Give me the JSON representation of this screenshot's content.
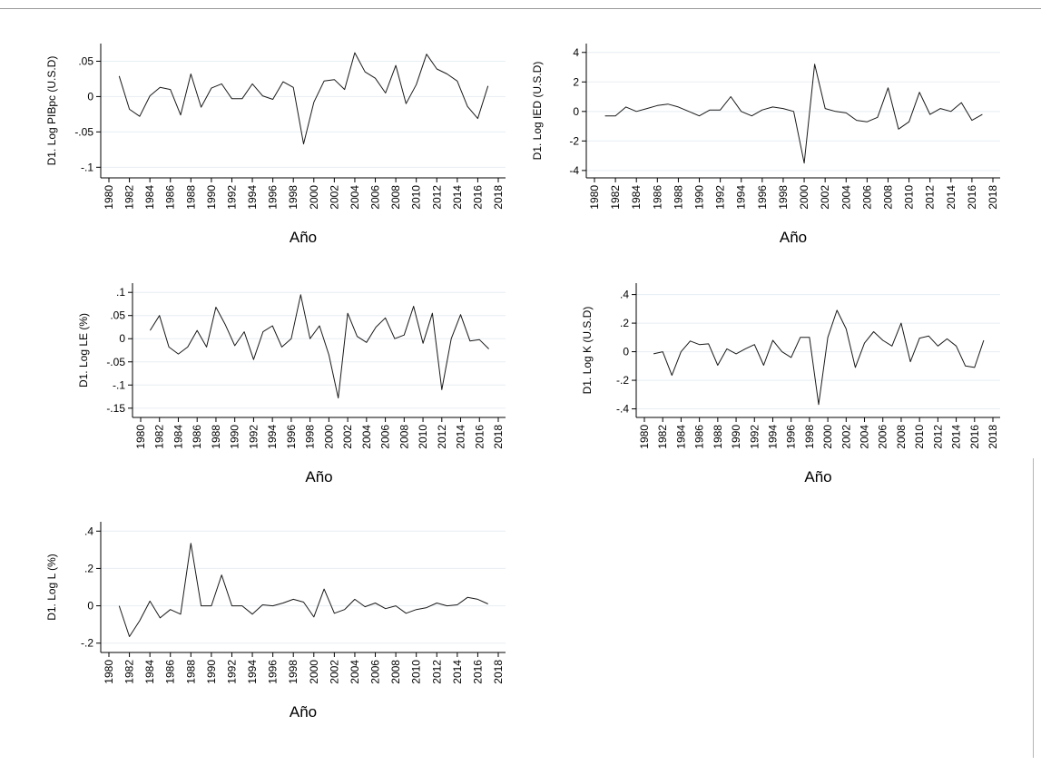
{
  "chart_data": [
    {
      "type": "line",
      "ylabel": "D1. Log PIBpc (U.S.D)",
      "xlabel": "Año",
      "xlim": [
        1980,
        2018
      ],
      "xticks": [
        "1980",
        "1982",
        "1984",
        "1986",
        "1988",
        "1990",
        "1992",
        "1994",
        "1996",
        "1998",
        "2000",
        "2002",
        "2004",
        "2006",
        "2008",
        "2010",
        "2012",
        "2014",
        "2016",
        "2018"
      ],
      "ylim": [
        -0.115,
        0.075
      ],
      "yticks": [
        0.05,
        0,
        -0.05,
        -0.1
      ],
      "ytick_labels": [
        ".05",
        "0",
        "-.05",
        "-.1"
      ],
      "grid": true,
      "x": [
        1981,
        1982,
        1983,
        1984,
        1985,
        1986,
        1987,
        1988,
        1989,
        1990,
        1991,
        1992,
        1993,
        1994,
        1995,
        1996,
        1997,
        1998,
        1999,
        2000,
        2001,
        2002,
        2003,
        2004,
        2005,
        2006,
        2007,
        2008,
        2009,
        2010,
        2011,
        2012,
        2013,
        2014,
        2015,
        2016,
        2017
      ],
      "y": [
        0.029,
        -0.018,
        -0.028,
        0.001,
        0.013,
        0.01,
        -0.026,
        0.032,
        -0.015,
        0.012,
        0.018,
        -0.003,
        -0.003,
        0.018,
        0.001,
        -0.004,
        0.021,
        0.013,
        -0.067,
        -0.008,
        0.022,
        0.024,
        0.01,
        0.062,
        0.035,
        0.026,
        0.005,
        0.044,
        -0.01,
        0.017,
        0.06,
        0.039,
        0.032,
        0.022,
        -0.014,
        -0.031,
        0.015
      ]
    },
    {
      "type": "line",
      "ylabel": "D1. Log IED (U.S.D)",
      "xlabel": "Año",
      "xlim": [
        1980,
        2018
      ],
      "xticks": [
        "1980",
        "1982",
        "1984",
        "1986",
        "1988",
        "1990",
        "1992",
        "1994",
        "1996",
        "1998",
        "2000",
        "2002",
        "2004",
        "2006",
        "2008",
        "2010",
        "2012",
        "2014",
        "2016",
        "2018"
      ],
      "ylim": [
        -4.5,
        4.6
      ],
      "yticks": [
        4,
        2,
        0,
        -2,
        -4
      ],
      "ytick_labels": [
        "4",
        "2",
        "0",
        "-2",
        "-4"
      ],
      "grid": true,
      "x": [
        1981,
        1982,
        1983,
        1984,
        1985,
        1986,
        1987,
        1988,
        1989,
        1990,
        1991,
        1992,
        1993,
        1994,
        1995,
        1996,
        1997,
        1998,
        1999,
        2000,
        2001,
        2002,
        2003,
        2004,
        2005,
        2006,
        2007,
        2008,
        2009,
        2010,
        2011,
        2012,
        2013,
        2014,
        2015,
        2016,
        2017
      ],
      "y": [
        -0.3,
        -0.3,
        0.3,
        0.0,
        0.2,
        0.4,
        0.5,
        0.3,
        0.0,
        -0.3,
        0.1,
        0.1,
        1.0,
        0.0,
        -0.3,
        0.1,
        0.3,
        0.2,
        0.0,
        -3.5,
        3.2,
        0.2,
        0.0,
        -0.1,
        -0.6,
        -0.7,
        -0.4,
        1.6,
        -1.2,
        -0.7,
        1.3,
        -0.2,
        0.2,
        0.0,
        0.6,
        -0.6,
        -0.2
      ]
    },
    {
      "type": "line",
      "ylabel": "D1. Log LE (%)",
      "xlabel": "Año",
      "xlim": [
        1980,
        2018
      ],
      "xticks": [
        "1980",
        "1982",
        "1984",
        "1986",
        "1988",
        "1990",
        "1992",
        "1994",
        "1996",
        "1998",
        "2000",
        "2002",
        "2004",
        "2006",
        "2008",
        "2010",
        "2012",
        "2014",
        "2016",
        "2018"
      ],
      "ylim": [
        -0.17,
        0.12
      ],
      "yticks": [
        0.1,
        0.05,
        0,
        -0.05,
        -0.1,
        -0.15
      ],
      "ytick_labels": [
        ".1",
        ".05",
        "0",
        "-.05",
        "-.1",
        "-.15"
      ],
      "grid": true,
      "x": [
        1981,
        1982,
        1983,
        1984,
        1985,
        1986,
        1987,
        1988,
        1989,
        1990,
        1991,
        1992,
        1993,
        1994,
        1995,
        1996,
        1997,
        1998,
        1999,
        2000,
        2001,
        2002,
        2003,
        2004,
        2005,
        2006,
        2007,
        2008,
        2009,
        2010,
        2011,
        2012,
        2013,
        2014,
        2015,
        2016,
        2017
      ],
      "y": [
        0.018,
        0.05,
        -0.018,
        -0.033,
        -0.018,
        0.018,
        -0.018,
        0.068,
        0.03,
        -0.015,
        0.015,
        -0.045,
        0.015,
        0.028,
        -0.018,
        0.0,
        0.095,
        0.0,
        0.028,
        -0.035,
        -0.128,
        0.055,
        0.005,
        -0.008,
        0.025,
        0.045,
        0.0,
        0.008,
        0.07,
        -0.01,
        0.055,
        -0.11,
        0.0,
        0.052,
        -0.005,
        -0.002,
        -0.022
      ]
    },
    {
      "type": "line",
      "ylabel": "D1. Log K (U.S.D)",
      "xlabel": "Año",
      "xlim": [
        1980,
        2018
      ],
      "xticks": [
        "1980",
        "1982",
        "1984",
        "1986",
        "1988",
        "1990",
        "1992",
        "1994",
        "1996",
        "1998",
        "2000",
        "2002",
        "2004",
        "2006",
        "2008",
        "2010",
        "2012",
        "2014",
        "2016",
        "2018"
      ],
      "ylim": [
        -0.46,
        0.48
      ],
      "yticks": [
        0.4,
        0.2,
        0,
        -0.2,
        -0.4
      ],
      "ytick_labels": [
        ".4",
        ".2",
        "0",
        "-.2",
        "-.4"
      ],
      "grid": true,
      "x": [
        1981,
        1982,
        1983,
        1984,
        1985,
        1986,
        1987,
        1988,
        1989,
        1990,
        1991,
        1992,
        1993,
        1994,
        1995,
        1996,
        1997,
        1998,
        1999,
        2000,
        2001,
        2002,
        2003,
        2004,
        2005,
        2006,
        2007,
        2008,
        2009,
        2010,
        2011,
        2012,
        2013,
        2014,
        2015,
        2016,
        2017
      ],
      "y": [
        -0.015,
        0.0,
        -0.165,
        0.0,
        0.075,
        0.05,
        0.055,
        -0.095,
        0.02,
        -0.015,
        0.02,
        0.05,
        -0.095,
        0.08,
        0.0,
        -0.04,
        0.1,
        0.1,
        -0.37,
        0.1,
        0.29,
        0.16,
        -0.11,
        0.06,
        0.14,
        0.08,
        0.04,
        0.2,
        -0.07,
        0.095,
        0.11,
        0.04,
        0.09,
        0.04,
        -0.1,
        -0.11,
        0.08
      ]
    },
    {
      "type": "line",
      "ylabel": "D1. Log L (%)",
      "xlabel": "Año",
      "xlim": [
        1980,
        2018
      ],
      "xticks": [
        "1980",
        "1982",
        "1984",
        "1986",
        "1988",
        "1990",
        "1992",
        "1994",
        "1996",
        "1998",
        "2000",
        "2002",
        "2004",
        "2006",
        "2008",
        "2010",
        "2012",
        "2014",
        "2016",
        "2018"
      ],
      "ylim": [
        -0.25,
        0.45
      ],
      "yticks": [
        0.4,
        0.2,
        0,
        -0.2
      ],
      "ytick_labels": [
        ".4",
        ".2",
        "0",
        "-.2"
      ],
      "grid": true,
      "x": [
        1981,
        1982,
        1983,
        1984,
        1985,
        1986,
        1987,
        1988,
        1989,
        1990,
        1991,
        1992,
        1993,
        1994,
        1995,
        1996,
        1997,
        1998,
        1999,
        2000,
        2001,
        2002,
        2003,
        2004,
        2005,
        2006,
        2007,
        2008,
        2009,
        2010,
        2011,
        2012,
        2013,
        2014,
        2015,
        2016,
        2017
      ],
      "y": [
        0.0,
        -0.165,
        -0.08,
        0.025,
        -0.065,
        -0.02,
        -0.045,
        0.335,
        0.0,
        0.0,
        0.165,
        0.0,
        0.0,
        -0.045,
        0.005,
        0.0,
        0.015,
        0.035,
        0.02,
        -0.06,
        0.09,
        -0.04,
        -0.02,
        0.035,
        -0.005,
        0.015,
        -0.015,
        0.0,
        -0.04,
        -0.02,
        -0.01,
        0.015,
        0.0,
        0.005,
        0.045,
        0.035,
        0.01
      ]
    }
  ]
}
